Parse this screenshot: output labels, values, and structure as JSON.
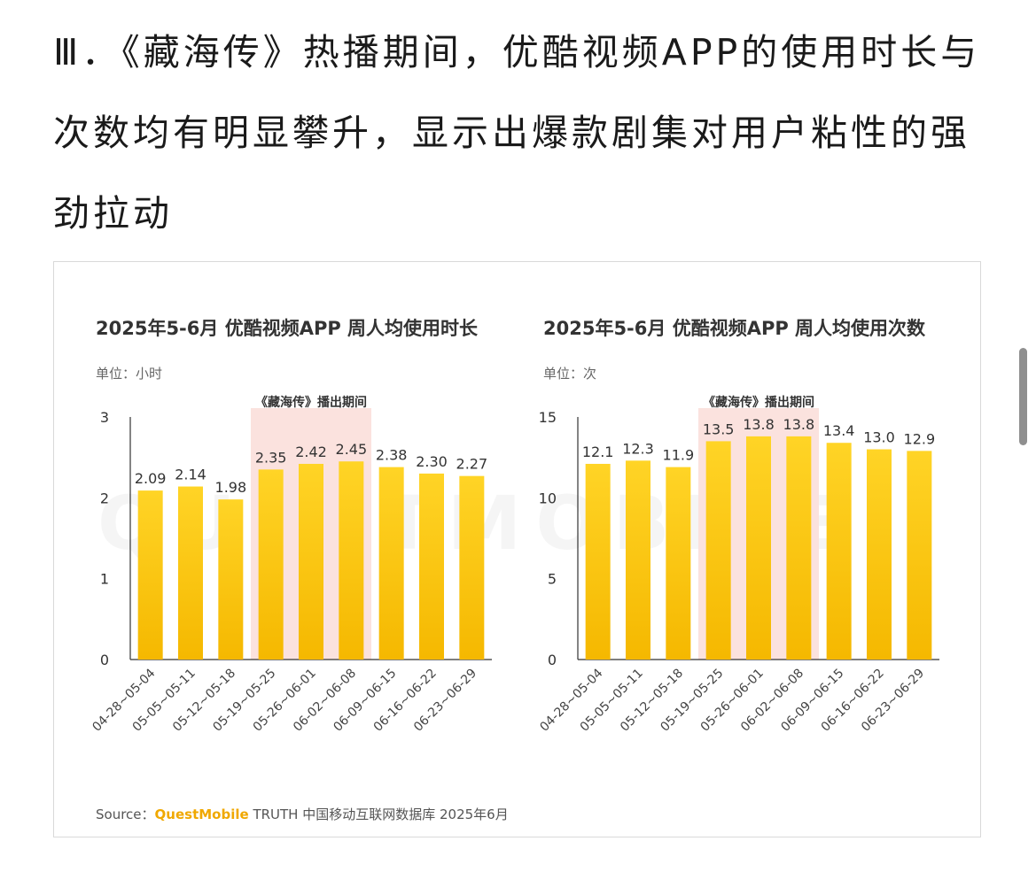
{
  "headline": "Ⅲ．《藏海传》热播期间，优酷视频APP的使用时长与次数均有明显攀升，显示出爆款剧集对用户粘性的强劲拉动",
  "watermark": "QUESTMOBILE",
  "colors": {
    "bar_top": "#ffd426",
    "bar_bottom": "#f5b800",
    "highlight": "#fbe2de",
    "axis": "#333333",
    "text": "#333333",
    "brand": "#f0a800"
  },
  "source": {
    "prefix": "Source：",
    "brand": "QuestMobile",
    "rest": " TRUTH 中国移动互联网数据库 2025年6月"
  },
  "chart_data": [
    {
      "type": "bar",
      "title": "2025年5-6月 优酷视频APP 周人均使用时长",
      "unit": "单位：小时",
      "highlight_label": "《藏海传》播出期间",
      "highlight_categories": [
        "05-19~05-25",
        "05-26~06-01",
        "06-02~06-08"
      ],
      "categories": [
        "04-28~05-04",
        "05-05~05-11",
        "05-12~05-18",
        "05-19~05-25",
        "05-26~06-01",
        "06-02~06-08",
        "06-09~06-15",
        "06-16~06-22",
        "06-23~06-29"
      ],
      "values": [
        2.09,
        2.14,
        1.98,
        2.35,
        2.42,
        2.45,
        2.38,
        2.3,
        2.27
      ],
      "value_labels": [
        "2.09",
        "2.14",
        "1.98",
        "2.35",
        "2.42",
        "2.45",
        "2.38",
        "2.30",
        "2.27"
      ],
      "yticks": [
        0,
        1,
        2,
        3
      ],
      "ytick_labels": [
        "0",
        "1",
        "2",
        "3"
      ],
      "ylim": [
        0,
        3
      ],
      "grid": false
    },
    {
      "type": "bar",
      "title": "2025年5-6月 优酷视频APP 周人均使用次数",
      "unit": "单位：次",
      "highlight_label": "《藏海传》播出期间",
      "highlight_categories": [
        "05-19~05-25",
        "05-26~06-01",
        "06-02~06-08"
      ],
      "categories": [
        "04-28~05-04",
        "05-05~05-11",
        "05-12~05-18",
        "05-19~05-25",
        "05-26~06-01",
        "06-02~06-08",
        "06-09~06-15",
        "06-16~06-22",
        "06-23~06-29"
      ],
      "values": [
        12.1,
        12.3,
        11.9,
        13.5,
        13.8,
        13.8,
        13.4,
        13.0,
        12.9
      ],
      "value_labels": [
        "12.1",
        "12.3",
        "11.9",
        "13.5",
        "13.8",
        "13.8",
        "13.4",
        "13.0",
        "12.9"
      ],
      "yticks": [
        0,
        5,
        10,
        15
      ],
      "ytick_labels": [
        "0",
        "5",
        "10",
        "15"
      ],
      "ylim": [
        0,
        15
      ],
      "grid": false
    }
  ]
}
